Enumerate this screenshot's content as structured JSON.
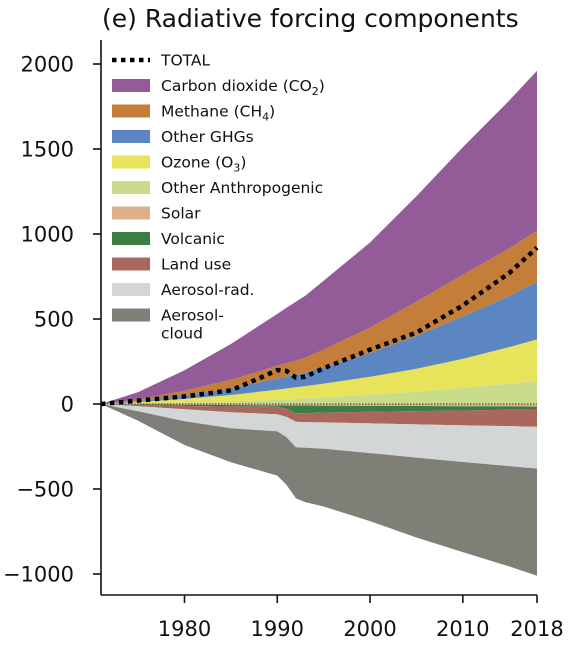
{
  "chart_data": {
    "type": "area",
    "title": "(e) Radiative forcing components",
    "xlabel": "",
    "ylabel": "",
    "x": [
      1971,
      1975,
      1980,
      1985,
      1990,
      1991,
      1992,
      1993,
      1995,
      2000,
      2005,
      2010,
      2015,
      2018
    ],
    "xticks": [
      1980,
      1990,
      2000,
      2010,
      2018
    ],
    "xlim": [
      1971,
      2018
    ],
    "yticks": [
      2000,
      1500,
      1000,
      500,
      0,
      -500,
      -1000
    ],
    "ytick_labels": [
      "2000",
      "1500",
      "1000",
      "500",
      "0",
      "−500",
      "−1000"
    ],
    "ylim": [
      -1100,
      2150
    ],
    "legend_position": "top-left",
    "positive_stack": [
      {
        "name": "Other Anthropogenic",
        "color": "#c9dc8c",
        "values": [
          0,
          3,
          8,
          15,
          25,
          27,
          30,
          33,
          40,
          55,
          72,
          95,
          120,
          135
        ]
      },
      {
        "name": "Ozone (O3)",
        "color": "#e7e35a",
        "values": [
          0,
          9,
          22,
          38,
          60,
          64,
          68,
          72,
          80,
          105,
          135,
          170,
          215,
          245
        ]
      },
      {
        "name": "Other GHGs",
        "color": "#5b86c2",
        "values": [
          0,
          6,
          20,
          40,
          65,
          70,
          74,
          78,
          95,
          140,
          195,
          250,
          300,
          340
        ]
      },
      {
        "name": "Methane (CH4)",
        "color": "#c47e3a",
        "values": [
          0,
          9,
          28,
          50,
          75,
          80,
          84,
          88,
          105,
          150,
          200,
          245,
          280,
          300
        ]
      },
      {
        "name": "Carbon dioxide (CO2)",
        "color": "#935c98",
        "values": [
          0,
          43,
          120,
          210,
          305,
          325,
          345,
          365,
          405,
          500,
          620,
          750,
          870,
          940
        ]
      }
    ],
    "negative_stack": [
      {
        "name": "Solar",
        "color": "#ddb08a",
        "values": [
          0,
          -2,
          -4,
          -6,
          -8,
          -8,
          -9,
          -9,
          -10,
          -11,
          -12,
          -13,
          -14,
          -15
        ]
      },
      {
        "name": "Volcanic",
        "color": "#3c7d41",
        "values": [
          0,
          -3,
          -7,
          -10,
          -8,
          -20,
          -45,
          -45,
          -40,
          -35,
          -30,
          -25,
          -20,
          -20
        ]
      },
      {
        "name": "Land use",
        "color": "#a9675d",
        "values": [
          0,
          -8,
          -20,
          -32,
          -45,
          -48,
          -50,
          -53,
          -58,
          -68,
          -78,
          -88,
          -96,
          -100
        ]
      },
      {
        "name": "Aerosol-rad.",
        "color": "#d3d6d6",
        "values": [
          0,
          -30,
          -70,
          -95,
          -100,
          -120,
          -150,
          -150,
          -155,
          -175,
          -195,
          -215,
          -235,
          -245
        ]
      },
      {
        "name": "Aerosol-cloud",
        "color": "#7f7f77",
        "values": [
          0,
          -55,
          -140,
          -200,
          -260,
          -280,
          -300,
          -320,
          -340,
          -400,
          -470,
          -530,
          -590,
          -630
        ]
      }
    ],
    "total": {
      "name": "TOTAL",
      "color": "#000000",
      "style": "dotted",
      "x": [
        1971,
        1975,
        1980,
        1985,
        1988,
        1990,
        1991,
        1992,
        1993,
        1995,
        2000,
        2005,
        2010,
        2015,
        2018
      ],
      "values": [
        0,
        20,
        45,
        80,
        150,
        200,
        195,
        155,
        160,
        210,
        320,
        420,
        580,
        770,
        920
      ]
    },
    "legend": [
      {
        "label": "TOTAL",
        "sub": "",
        "after": "",
        "color": "#000000",
        "kind": "line"
      },
      {
        "label": "Carbon dioxide (CO",
        "sub": "2",
        "after": ")",
        "color": "#935c98",
        "kind": "patch"
      },
      {
        "label": "Methane (CH",
        "sub": "4",
        "after": ")",
        "color": "#c47e3a",
        "kind": "patch"
      },
      {
        "label": "Other GHGs",
        "sub": "",
        "after": "",
        "color": "#5b86c2",
        "kind": "patch"
      },
      {
        "label": "Ozone (O",
        "sub": "3",
        "after": ")",
        "color": "#e7e35a",
        "kind": "patch"
      },
      {
        "label": "Other Anthropogenic",
        "sub": "",
        "after": "",
        "color": "#c9dc8c",
        "kind": "patch"
      },
      {
        "label": "Solar",
        "sub": "",
        "after": "",
        "color": "#ddb08a",
        "kind": "patch"
      },
      {
        "label": "Volcanic",
        "sub": "",
        "after": "",
        "color": "#3c7d41",
        "kind": "patch"
      },
      {
        "label": "Land use",
        "sub": "",
        "after": "",
        "color": "#a9675d",
        "kind": "patch"
      },
      {
        "label": "Aerosol-rad.",
        "sub": "",
        "after": "",
        "color": "#d3d6d6",
        "kind": "patch"
      },
      {
        "label": "Aerosol-",
        "line2": "cloud",
        "sub": "",
        "after": "",
        "color": "#7f7f77",
        "kind": "patch"
      }
    ]
  }
}
